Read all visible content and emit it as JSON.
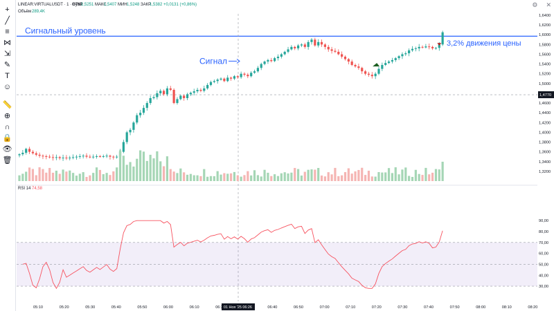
{
  "header": {
    "symbol": "LINEAR:VIRTUALUSDT · 1 · Bybit",
    "open_label": "ОТКР",
    "open_value": "1,5251",
    "high_label": "МАКС",
    "high_value": "1,5407",
    "low_label": "МИН",
    "low_value": "1,5248",
    "close_label": "ЗАКР",
    "close_value": "1,5382",
    "change": "+0,0131 (+0,86%)",
    "volume_label": "Объём",
    "volume_value": "289,4K"
  },
  "rsi_header": {
    "label": "RSI 14",
    "value": "74,58"
  },
  "annotations": {
    "signal_level": "Сигнальный уровень",
    "signal": "Сигнал",
    "move": "3,2% движения цены"
  },
  "cursor": {
    "time_label": "01 Ноя '25 06:26",
    "price_label": "1,4770"
  },
  "colors": {
    "up": "#26a69a",
    "down": "#ef5350",
    "annotation": "#2962ff",
    "rsi_line": "#f7525f",
    "rsi_band": "#7e57c2"
  },
  "toolbar_icons": [
    "crosshair-icon",
    "trend-line-icon",
    "fib-icon",
    "pattern-icon",
    "projection-icon",
    "brush-icon",
    "text-icon",
    "emoji-icon",
    "ruler-icon",
    "zoom-icon",
    "magnet-icon",
    "lock-icon",
    "eye-icon",
    "trash-icon"
  ],
  "chart_data": {
    "type": "candlestick",
    "price_axis": {
      "min": 1.3,
      "max": 1.64,
      "ticks": [
        "1,6400",
        "1,6200",
        "1,6000",
        "1,5800",
        "1,5600",
        "1,5400",
        "1,5200",
        "1,5000",
        "1,4800",
        "1,4600",
        "1,4400",
        "1,4200",
        "1,4000",
        "1,3800",
        "1,3600",
        "1,3400",
        "1,3200"
      ]
    },
    "time_axis": [
      "05:10",
      "05:20",
      "05:30",
      "05:40",
      "05:50",
      "06:00",
      "06:10",
      "06:20",
      "06:30",
      "06:40",
      "06:50",
      "07:00",
      "07:10",
      "07:20",
      "07:30",
      "07:40",
      "07:50",
      "08:00",
      "08:10",
      "08:20"
    ],
    "signal_level_price": 1.597,
    "close_series": [
      1.355,
      1.358,
      1.366,
      1.36,
      1.357,
      1.354,
      1.352,
      1.351,
      1.35,
      1.349,
      1.348,
      1.349,
      1.347,
      1.348,
      1.347,
      1.348,
      1.349,
      1.35,
      1.351,
      1.352,
      1.35,
      1.349,
      1.35,
      1.351,
      1.35,
      1.351,
      1.352,
      1.35,
      1.349,
      1.35,
      1.36,
      1.38,
      1.4,
      1.405,
      1.42,
      1.435,
      1.44,
      1.45,
      1.46,
      1.47,
      1.472,
      1.48,
      1.485,
      1.478,
      1.49,
      1.487,
      1.46,
      1.468,
      1.475,
      1.47,
      1.478,
      1.481,
      1.484,
      1.487,
      1.485,
      1.49,
      1.497,
      1.503,
      1.505,
      1.508,
      1.51,
      1.505,
      1.512,
      1.51,
      1.515,
      1.513,
      1.52,
      1.518,
      1.515,
      1.522,
      1.525,
      1.532,
      1.54,
      1.545,
      1.548,
      1.546,
      1.552,
      1.555,
      1.56,
      1.565,
      1.57,
      1.575,
      1.572,
      1.578,
      1.58,
      1.575,
      1.585,
      1.59,
      1.578,
      1.585,
      1.58,
      1.575,
      1.57,
      1.567,
      1.565,
      1.56,
      1.555,
      1.55,
      1.545,
      1.538,
      1.535,
      1.532,
      1.525,
      1.52,
      1.518,
      1.515,
      1.52,
      1.53,
      1.538,
      1.542,
      1.545,
      1.548,
      1.552,
      1.556,
      1.56,
      1.562,
      1.568,
      1.571,
      1.572,
      1.575,
      1.574,
      1.576,
      1.575,
      1.572,
      1.573,
      1.58,
      1.605
    ],
    "volume_axis_note": "volume bars under candles",
    "rsi": {
      "ylim": [
        25,
        92
      ],
      "ticks": [
        "90,00",
        "80,00",
        "70,00",
        "60,00",
        "50,00",
        "40,00",
        "30,00"
      ],
      "upper_band": 70,
      "lower_band": 30
    }
  }
}
